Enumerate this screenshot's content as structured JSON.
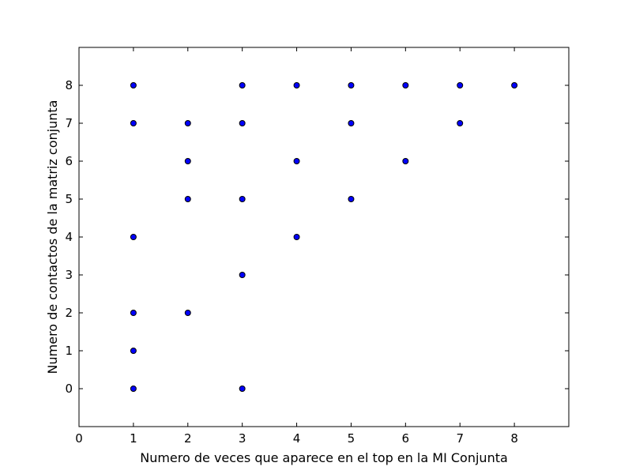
{
  "chart_data": {
    "type": "scatter",
    "xlabel": "Numero de veces que aparece en el top en la MI Conjunta",
    "ylabel": "Numero de contactos de la matriz conjunta",
    "xlim": [
      0,
      9
    ],
    "ylim": [
      -1,
      9
    ],
    "xticks": [
      0,
      1,
      2,
      3,
      4,
      5,
      6,
      7,
      8
    ],
    "yticks": [
      0,
      1,
      2,
      3,
      4,
      5,
      6,
      7,
      8
    ],
    "grid": false,
    "colors": {
      "marker_fill": "#0000ff",
      "marker_edge": "#000000"
    },
    "points": [
      [
        1,
        8
      ],
      [
        1,
        7
      ],
      [
        1,
        4
      ],
      [
        1,
        2
      ],
      [
        1,
        1
      ],
      [
        1,
        0
      ],
      [
        2,
        7
      ],
      [
        2,
        6
      ],
      [
        2,
        5
      ],
      [
        2,
        2
      ],
      [
        3,
        8
      ],
      [
        3,
        7
      ],
      [
        3,
        5
      ],
      [
        3,
        3
      ],
      [
        3,
        0
      ],
      [
        4,
        8
      ],
      [
        4,
        6
      ],
      [
        4,
        4
      ],
      [
        5,
        8
      ],
      [
        5,
        7
      ],
      [
        5,
        5
      ],
      [
        6,
        8
      ],
      [
        6,
        6
      ],
      [
        7,
        8
      ],
      [
        7,
        7
      ],
      [
        8,
        8
      ]
    ]
  }
}
